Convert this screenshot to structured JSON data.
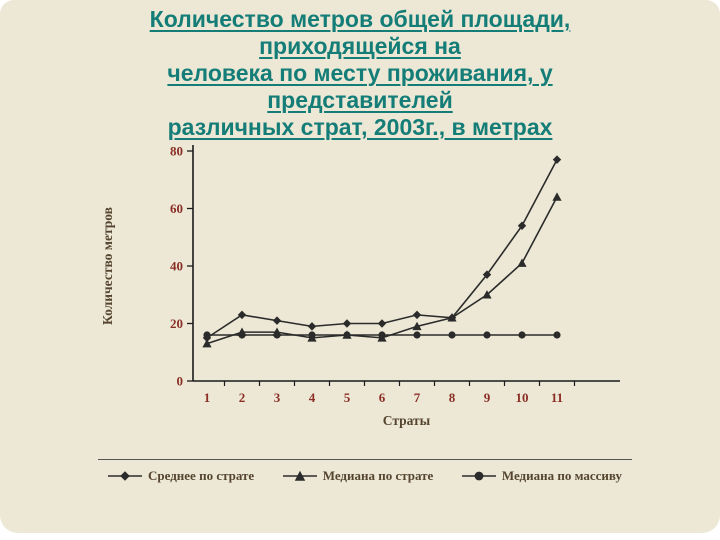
{
  "slide": {
    "background": "#ece8d5",
    "title_color": "#157d78",
    "title_lines": [
      "Количество метров общей площади,",
      "приходящейся на",
      "человека по месту проживания, у",
      "представителей",
      "различных страт, 2003г., в метрах"
    ]
  },
  "chart_data": {
    "type": "line",
    "title": "Количество метров общей площади, приходящейся на человека по месту проживания, у представителей различных страт, 2003г., в метрах",
    "xlabel": "Страты",
    "ylabel": "Количество метров",
    "ylim": [
      0,
      80
    ],
    "yticks": [
      0,
      20,
      40,
      60,
      80
    ],
    "grid": false,
    "legend_position": "bottom",
    "categories": [
      "1",
      "2",
      "3",
      "4",
      "5",
      "6",
      "7",
      "8",
      "9",
      "10",
      "11"
    ],
    "series": [
      {
        "name": "Среднее по страте",
        "marker": "diamond",
        "values": [
          15,
          23,
          21,
          19,
          20,
          20,
          23,
          22,
          37,
          54,
          77
        ]
      },
      {
        "name": "Медиана по страте",
        "marker": "triangle",
        "values": [
          13,
          17,
          17,
          15,
          16,
          15,
          19,
          22,
          30,
          41,
          64
        ]
      },
      {
        "name": "Медиана по массиву",
        "marker": "circle",
        "values": [
          16,
          16,
          16,
          16,
          16,
          16,
          16,
          16,
          16,
          16,
          16
        ]
      }
    ],
    "colors": {
      "series_line": "#2b2b2b",
      "axis_line": "#1a1a1a",
      "tick_label": "#8b2f26",
      "axis_title": "#55452f"
    }
  }
}
